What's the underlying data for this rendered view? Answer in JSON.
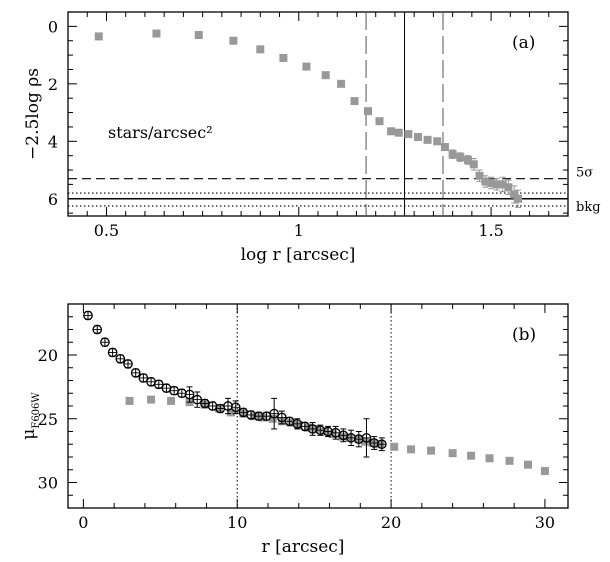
{
  "chart_data": [
    {
      "panel_label": "(a)",
      "type": "scatter",
      "xlabel": "log r [arcsec]",
      "ylabel": "−2.5log ρs",
      "xlim": [
        0.4,
        1.7
      ],
      "ylim": [
        6.6,
        -0.5
      ],
      "y_inverted": true,
      "xticks": [
        "0.5",
        "1",
        "1.5"
      ],
      "yticks": [
        "0",
        "2",
        "4",
        "6"
      ],
      "annotation": "stars/arcsec²",
      "hlines": [
        {
          "label": "5σ",
          "y": 5.3,
          "style": "dashed"
        },
        {
          "label": "bkg",
          "y": 6.0,
          "style": "solid"
        },
        {
          "label": "",
          "y": 5.8,
          "style": "dotted"
        },
        {
          "label": "",
          "y": 6.25,
          "style": "dotted"
        }
      ],
      "vlines": [
        {
          "x": 1.175,
          "style": "long-dash"
        },
        {
          "x": 1.275,
          "style": "solid"
        },
        {
          "x": 1.375,
          "style": "long-dash"
        }
      ],
      "points": [
        {
          "x": 0.48,
          "y": 0.35
        },
        {
          "x": 0.63,
          "y": 0.25
        },
        {
          "x": 0.74,
          "y": 0.3
        },
        {
          "x": 0.83,
          "y": 0.5
        },
        {
          "x": 0.9,
          "y": 0.8
        },
        {
          "x": 0.96,
          "y": 1.1
        },
        {
          "x": 1.02,
          "y": 1.4
        },
        {
          "x": 1.07,
          "y": 1.7
        },
        {
          "x": 1.11,
          "y": 2.0
        },
        {
          "x": 1.145,
          "y": 2.6
        },
        {
          "x": 1.18,
          "y": 2.95
        },
        {
          "x": 1.21,
          "y": 3.3
        },
        {
          "x": 1.24,
          "y": 3.65
        },
        {
          "x": 1.26,
          "y": 3.7
        },
        {
          "x": 1.285,
          "y": 3.75
        },
        {
          "x": 1.31,
          "y": 3.85
        },
        {
          "x": 1.335,
          "y": 3.95
        },
        {
          "x": 1.36,
          "y": 4.0
        },
        {
          "x": 1.38,
          "y": 4.2
        },
        {
          "x": 1.4,
          "y": 4.45,
          "err": 0.15
        },
        {
          "x": 1.42,
          "y": 4.55,
          "err": 0.15
        },
        {
          "x": 1.44,
          "y": 4.65,
          "err": 0.15
        },
        {
          "x": 1.455,
          "y": 4.8,
          "err": 0.2
        },
        {
          "x": 1.47,
          "y": 5.2,
          "err": 0.2
        },
        {
          "x": 1.485,
          "y": 5.4,
          "err": 0.2
        },
        {
          "x": 1.5,
          "y": 5.45,
          "err": 0.2
        },
        {
          "x": 1.515,
          "y": 5.5,
          "err": 0.2
        },
        {
          "x": 1.53,
          "y": 5.5,
          "err": 0.25
        },
        {
          "x": 1.545,
          "y": 5.6,
          "err": 0.25
        },
        {
          "x": 1.56,
          "y": 5.85,
          "err": 0.3
        },
        {
          "x": 1.57,
          "y": 6.0,
          "err": 0.3
        }
      ]
    },
    {
      "panel_label": "(b)",
      "type": "scatter",
      "xlabel": "r [arcsec]",
      "ylabel": "μF606W",
      "ylabel_main": "μ",
      "ylabel_sub": "F606W",
      "xlim": [
        -1,
        31.5
      ],
      "ylim": [
        32,
        16
      ],
      "y_inverted": true,
      "xticks": [
        "0",
        "10",
        "20",
        "30"
      ],
      "yticks": [
        "20",
        "25",
        "30"
      ],
      "vlines": [
        {
          "x": 10,
          "style": "dotted"
        },
        {
          "x": 20,
          "style": "dotted"
        }
      ],
      "series": [
        {
          "marker": "open-circle",
          "points": [
            {
              "x": 0.3,
              "y": 16.9,
              "err": 0.3
            },
            {
              "x": 0.9,
              "y": 18.0,
              "err": 0.3
            },
            {
              "x": 1.4,
              "y": 19.0,
              "err": 0.3
            },
            {
              "x": 1.9,
              "y": 19.8,
              "err": 0.3
            },
            {
              "x": 2.4,
              "y": 20.3,
              "err": 0.3
            },
            {
              "x": 2.9,
              "y": 20.7,
              "err": 0.3
            },
            {
              "x": 3.4,
              "y": 21.4,
              "err": 0.3
            },
            {
              "x": 3.9,
              "y": 21.8,
              "err": 0.3
            },
            {
              "x": 4.4,
              "y": 22.1,
              "err": 0.3
            },
            {
              "x": 4.9,
              "y": 22.3,
              "err": 0.3
            },
            {
              "x": 5.4,
              "y": 22.6,
              "err": 0.3
            },
            {
              "x": 5.9,
              "y": 22.8,
              "err": 0.3
            },
            {
              "x": 6.4,
              "y": 23.0,
              "err": 0.3
            },
            {
              "x": 6.9,
              "y": 23.1,
              "err": 0.6
            },
            {
              "x": 7.4,
              "y": 23.5,
              "err": 0.6
            },
            {
              "x": 7.9,
              "y": 23.8,
              "err": 0.3
            },
            {
              "x": 8.4,
              "y": 24.0,
              "err": 0.3
            },
            {
              "x": 8.9,
              "y": 24.2,
              "err": 0.3
            },
            {
              "x": 9.4,
              "y": 24.0,
              "err": 0.6
            },
            {
              "x": 9.9,
              "y": 24.1,
              "err": 0.5
            },
            {
              "x": 10.4,
              "y": 24.5,
              "err": 0.3
            },
            {
              "x": 10.9,
              "y": 24.7,
              "err": 0.3
            },
            {
              "x": 11.4,
              "y": 24.8,
              "err": 0.3
            },
            {
              "x": 11.9,
              "y": 24.8,
              "err": 0.3
            },
            {
              "x": 12.4,
              "y": 24.6,
              "err": 1.2
            },
            {
              "x": 12.9,
              "y": 24.9,
              "err": 0.5
            },
            {
              "x": 13.4,
              "y": 25.2,
              "err": 0.3
            },
            {
              "x": 13.9,
              "y": 25.4,
              "err": 0.4
            },
            {
              "x": 14.4,
              "y": 25.6,
              "err": 0.3
            },
            {
              "x": 14.9,
              "y": 25.8,
              "err": 0.5
            },
            {
              "x": 15.4,
              "y": 25.9,
              "err": 0.4
            },
            {
              "x": 15.9,
              "y": 26.0,
              "err": 0.4
            },
            {
              "x": 16.4,
              "y": 26.1,
              "err": 0.5
            },
            {
              "x": 16.9,
              "y": 26.3,
              "err": 0.5
            },
            {
              "x": 17.4,
              "y": 26.5,
              "err": 0.6
            },
            {
              "x": 17.9,
              "y": 26.6,
              "err": 0.6
            },
            {
              "x": 18.4,
              "y": 26.5,
              "err": 1.5
            },
            {
              "x": 18.9,
              "y": 26.9,
              "err": 0.5
            },
            {
              "x": 19.4,
              "y": 27.0,
              "err": 0.5
            }
          ]
        },
        {
          "marker": "gray-square",
          "points": [
            {
              "x": 3.0,
              "y": 23.6
            },
            {
              "x": 4.4,
              "y": 23.5
            },
            {
              "x": 5.7,
              "y": 23.6
            },
            {
              "x": 6.9,
              "y": 23.7
            },
            {
              "x": 7.9,
              "y": 23.9
            },
            {
              "x": 8.8,
              "y": 24.2
            },
            {
              "x": 9.6,
              "y": 24.5
            },
            {
              "x": 10.4,
              "y": 24.6
            },
            {
              "x": 11.1,
              "y": 24.8
            },
            {
              "x": 11.7,
              "y": 24.9
            },
            {
              "x": 12.3,
              "y": 25.0
            },
            {
              "x": 12.9,
              "y": 25.2
            },
            {
              "x": 13.5,
              "y": 25.3
            },
            {
              "x": 14.0,
              "y": 25.5
            },
            {
              "x": 14.6,
              "y": 25.7
            },
            {
              "x": 15.1,
              "y": 25.8
            },
            {
              "x": 15.7,
              "y": 26.0
            },
            {
              "x": 16.2,
              "y": 26.2
            },
            {
              "x": 16.8,
              "y": 26.4
            },
            {
              "x": 17.3,
              "y": 26.5
            },
            {
              "x": 17.9,
              "y": 26.6
            },
            {
              "x": 18.3,
              "y": 26.8
            },
            {
              "x": 18.8,
              "y": 26.9
            },
            {
              "x": 19.3,
              "y": 27.0
            },
            {
              "x": 20.2,
              "y": 27.2
            },
            {
              "x": 21.3,
              "y": 27.4
            },
            {
              "x": 22.6,
              "y": 27.5
            },
            {
              "x": 24.0,
              "y": 27.7
            },
            {
              "x": 25.2,
              "y": 27.9
            },
            {
              "x": 26.4,
              "y": 28.1
            },
            {
              "x": 27.7,
              "y": 28.3
            },
            {
              "x": 28.9,
              "y": 28.6
            },
            {
              "x": 30.0,
              "y": 29.1
            }
          ]
        }
      ]
    }
  ]
}
